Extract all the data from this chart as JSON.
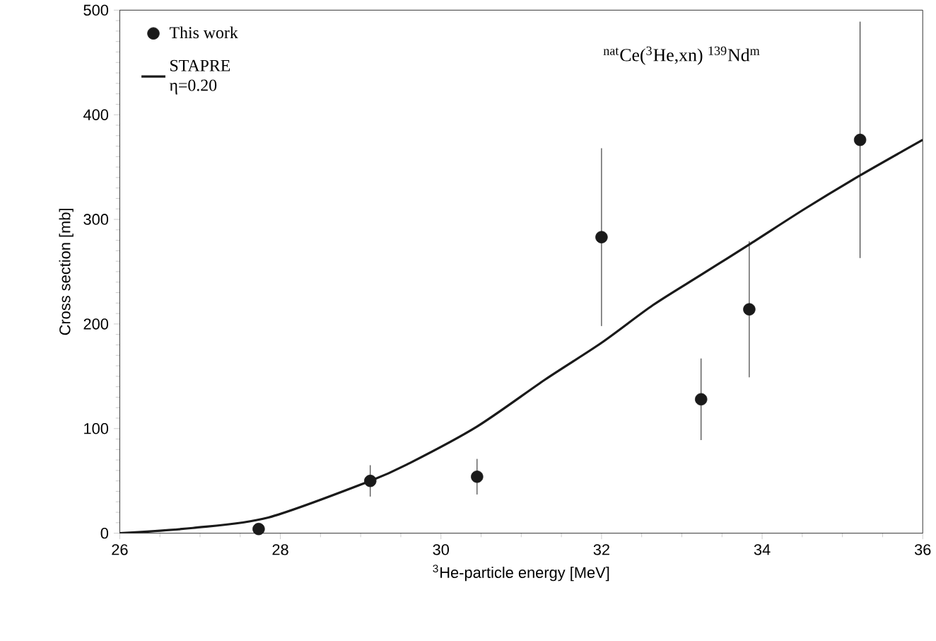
{
  "chart_data": {
    "type": "scatter",
    "xlabel": "$^{3}$He-particle energy [MeV]",
    "ylabel": "Cross section [mb]",
    "annotations": [
      "$^{nat}$Ce($^{3}$He,xn) $^{139}$Nd$^{m}$"
    ],
    "xlim": [
      26,
      36
    ],
    "xticks": [
      26,
      28,
      30,
      32,
      34,
      36
    ],
    "ylim": [
      0,
      500
    ],
    "yticks": [
      0,
      100,
      200,
      300,
      400,
      500
    ],
    "grid": false,
    "legend": "top left",
    "series": [
      {
        "name": "This work",
        "color": "#1a1a1a",
        "marker": "circle",
        "x": [
          27.73,
          29.12,
          30.45,
          32.0,
          33.24,
          33.84,
          35.22
        ],
        "values": [
          4,
          50,
          54,
          283,
          128,
          214,
          376
        ],
        "errors": [
          null,
          15,
          17,
          85,
          39,
          65,
          113
        ]
      },
      {
        "name": "STAPRE η=0.20",
        "type": "line",
        "color": "#1a1a1a",
        "marker": "none",
        "line_style": "solid",
        "x": [
          26,
          26.91,
          27.85,
          29.12,
          29.61,
          30.45,
          31.3,
          32.0,
          32.64,
          33.24,
          33.86,
          34.53,
          35.22,
          36
        ],
        "values": [
          0,
          5,
          15,
          50,
          67,
          102,
          147,
          182,
          218,
          247,
          277,
          310,
          342,
          376
        ]
      }
    ]
  }
}
